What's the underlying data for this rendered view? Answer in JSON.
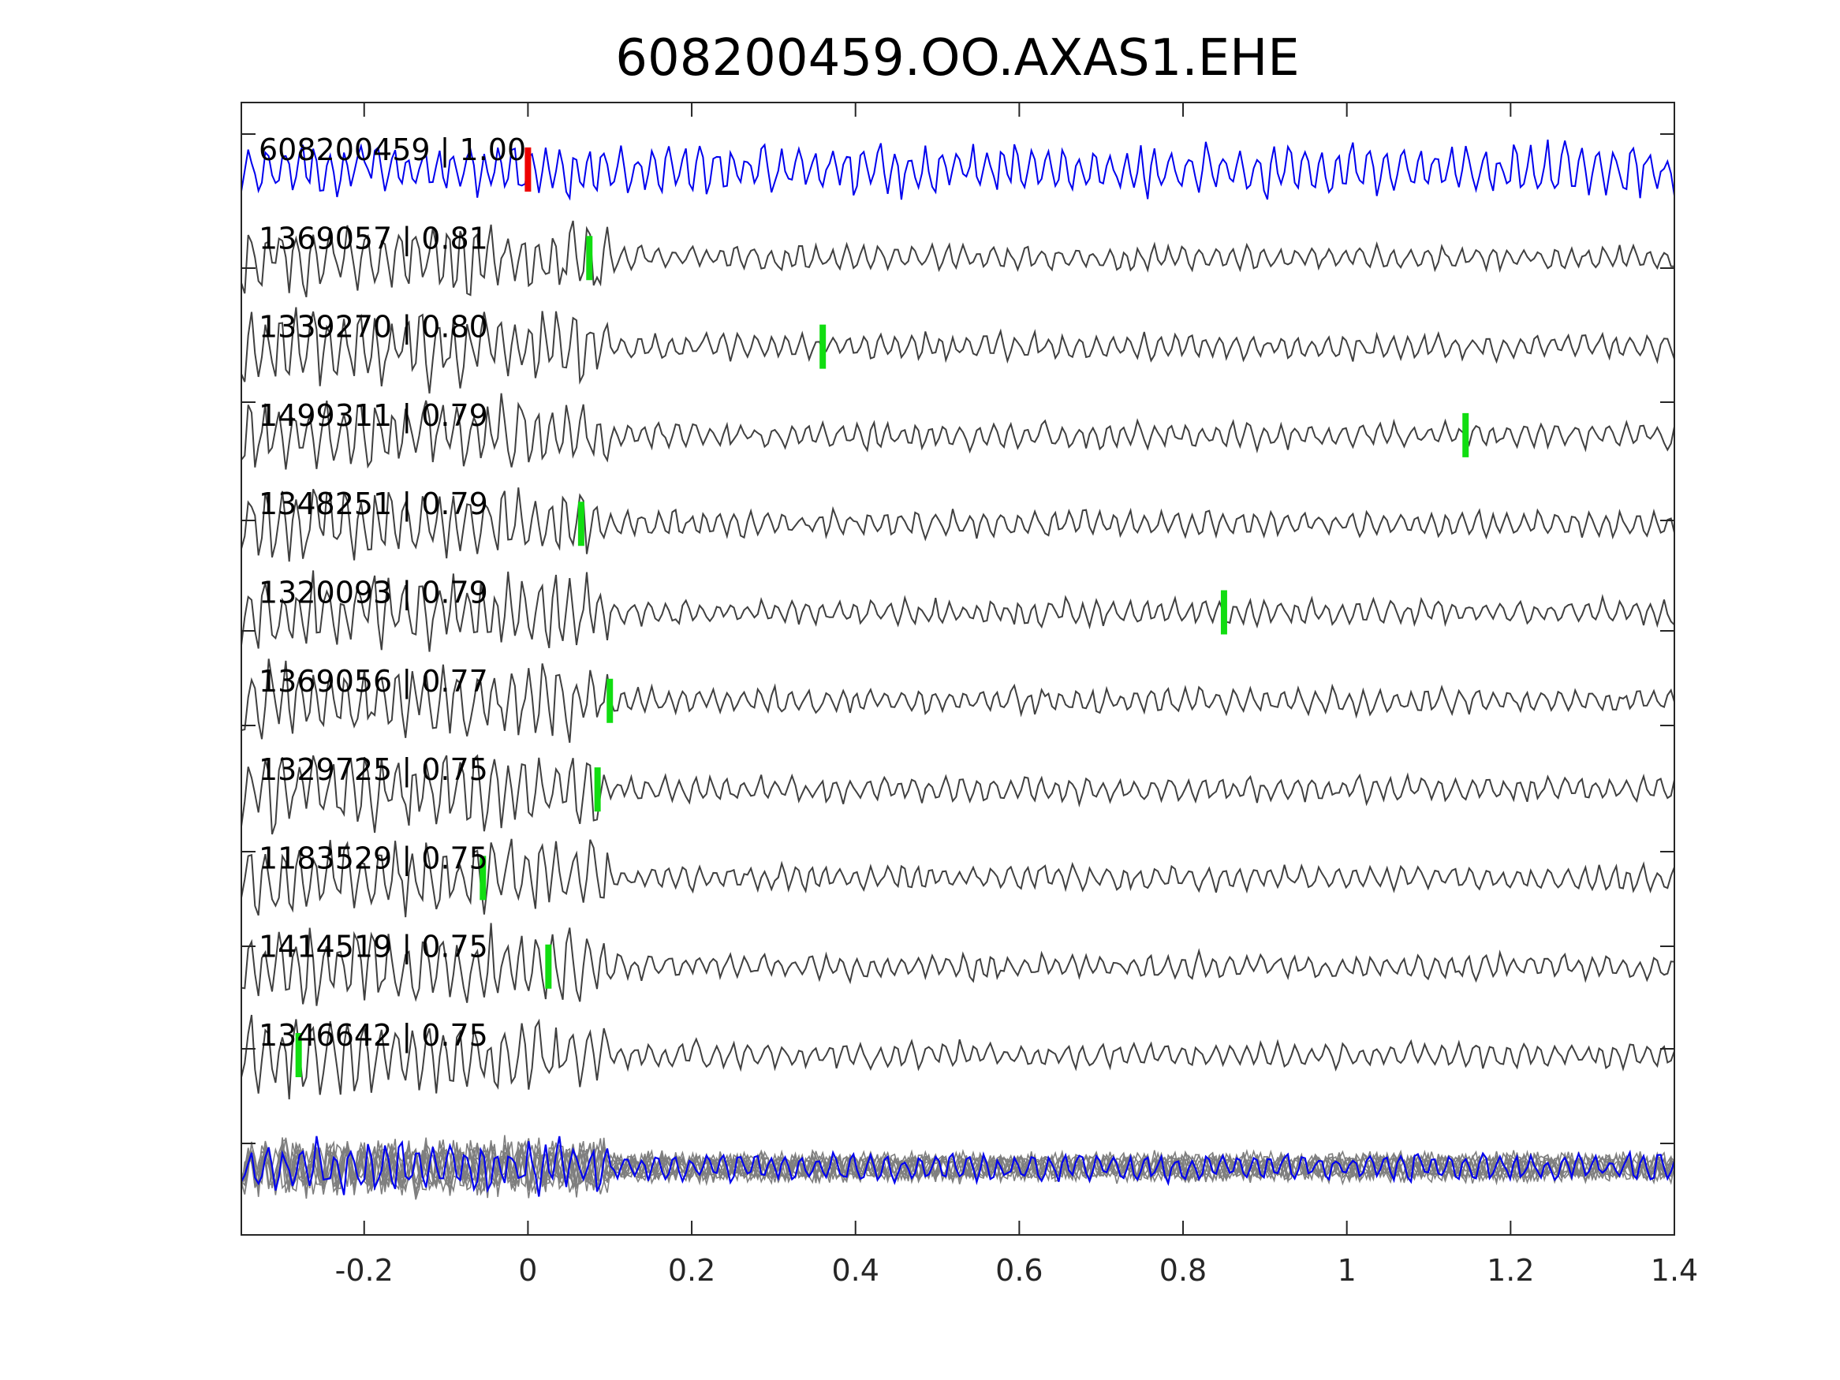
{
  "chart_data": {
    "type": "line",
    "title": "608200459.OO.AXAS1.EHE",
    "xlabel": "",
    "ylabel": "",
    "xlim": [
      -0.35,
      1.4
    ],
    "x_ticks": [
      -0.2,
      0,
      0.2,
      0.4,
      0.6,
      0.8,
      1,
      1.2,
      1.4
    ],
    "x_tick_labels": [
      "-0.2",
      "0",
      "0.2",
      "0.4",
      "0.6",
      "0.8",
      "1",
      "1.2",
      "1.4"
    ],
    "grid": false,
    "legend": "none",
    "colors": {
      "template": "#0000ee",
      "match": "#404040",
      "stack": "#7f7f7f",
      "template_pick": "#ee0000",
      "match_pick": "#11dd11",
      "axis": "#262626"
    },
    "series": [
      {
        "id": "608200459",
        "label": "608200459 | 1.00",
        "cc": 1.0,
        "pick_time": 0.0,
        "role": "template"
      },
      {
        "id": "1369057",
        "label": "1369057 | 0.81",
        "cc": 0.81,
        "pick_time": 0.075,
        "role": "match"
      },
      {
        "id": "1339270",
        "label": "1339270 | 0.80",
        "cc": 0.8,
        "pick_time": 0.36,
        "role": "match"
      },
      {
        "id": "1499311",
        "label": "1499311 | 0.79",
        "cc": 0.79,
        "pick_time": 1.145,
        "role": "match"
      },
      {
        "id": "1348251",
        "label": "1348251 | 0.79",
        "cc": 0.79,
        "pick_time": 0.065,
        "role": "match"
      },
      {
        "id": "1320093",
        "label": "1320093 | 0.79",
        "cc": 0.79,
        "pick_time": 0.85,
        "role": "match"
      },
      {
        "id": "1369056",
        "label": "1369056 | 0.77",
        "cc": 0.77,
        "pick_time": 0.1,
        "role": "match"
      },
      {
        "id": "1329725",
        "label": "1329725 | 0.75",
        "cc": 0.75,
        "pick_time": 0.085,
        "role": "match"
      },
      {
        "id": "1183529",
        "label": "1183529 | 0.75",
        "cc": 0.75,
        "pick_time": -0.055,
        "role": "match"
      },
      {
        "id": "1414519",
        "label": "1414519 | 0.75",
        "cc": 0.75,
        "pick_time": 0.025,
        "role": "match"
      },
      {
        "id": "1346642",
        "label": "1346642 | 0.75",
        "cc": 0.75,
        "pick_time": -0.28,
        "role": "match"
      }
    ]
  }
}
